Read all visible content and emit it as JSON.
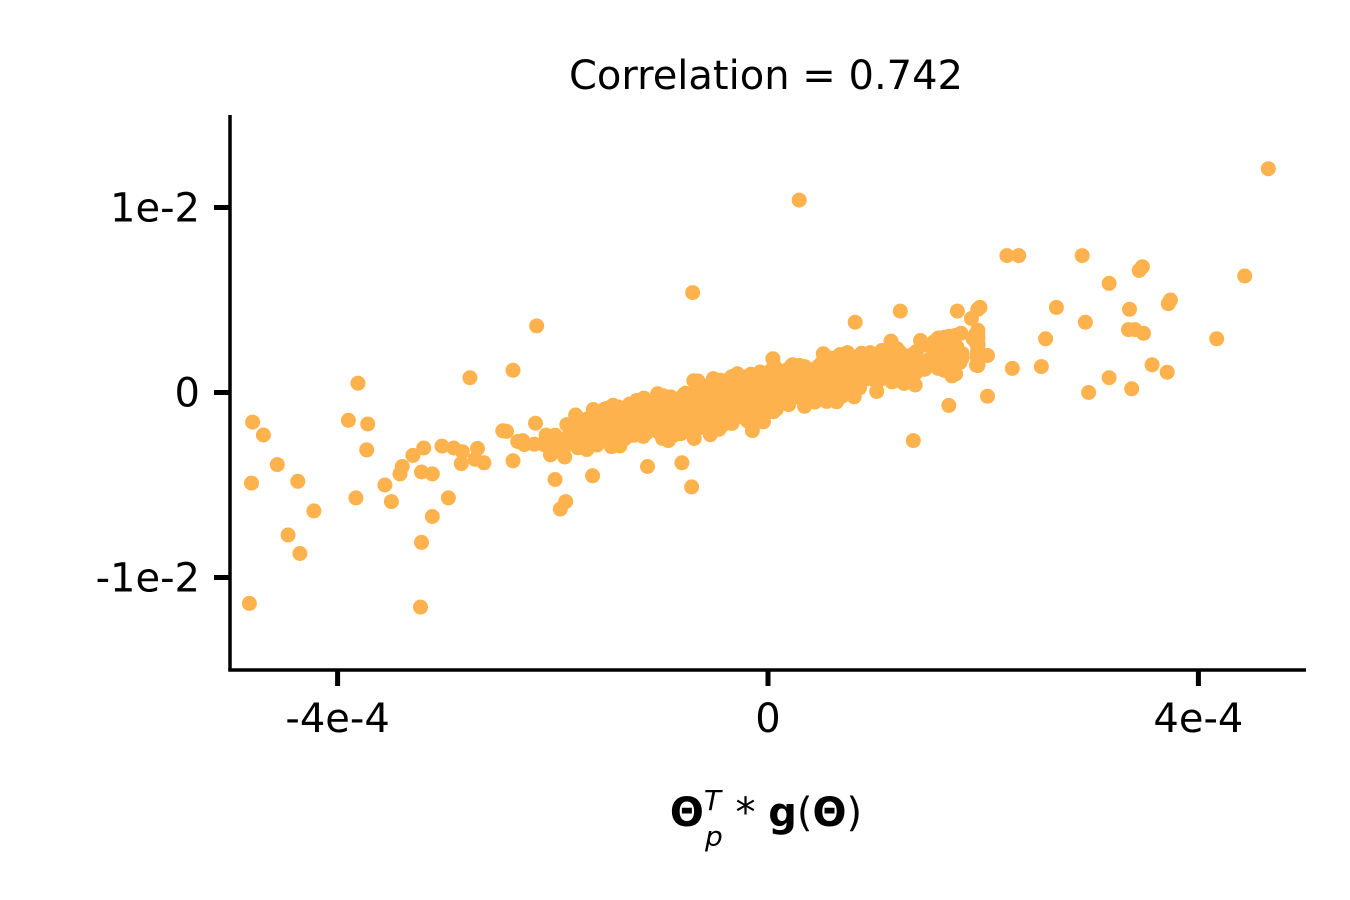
{
  "chart_data": {
    "type": "scatter",
    "title": "Correlation = 0.742",
    "xlabel": {
      "theta": "Θ",
      "sup": "T",
      "sub": "p",
      "op": " * ",
      "g": "g",
      "lparen": "(",
      "theta2": "Θ",
      "rparen": ")"
    },
    "ylabel": "",
    "xlim": [
      -0.0005,
      0.0005
    ],
    "ylim": [
      -0.015,
      0.015
    ],
    "xticks": [
      {
        "value": -0.0004,
        "label": "-4e-4"
      },
      {
        "value": 0,
        "label": "0"
      },
      {
        "value": 0.0004,
        "label": "4e-4"
      }
    ],
    "yticks": [
      {
        "value": 0.01,
        "label": "1e-2"
      },
      {
        "value": 0,
        "label": "0"
      },
      {
        "value": -0.01,
        "label": "-1e-2"
      }
    ],
    "color": "#fdb24d",
    "grid": false,
    "outliers": [
      [
        0.000465,
        0.0121
      ],
      [
        2.9e-05,
        0.0104
      ],
      [
        0.000443,
        0.0063
      ],
      [
        0.000292,
        0.0074
      ],
      [
        0.000233,
        0.0074
      ],
      [
        0.000348,
        0.0068
      ],
      [
        0.000345,
        0.0066
      ],
      [
        0.000317,
        0.0059
      ],
      [
        0.000374,
        0.005
      ],
      [
        0.000372,
        0.0048
      ],
      [
        0.000336,
        0.0045
      ],
      [
        0.000268,
        0.0046
      ],
      [
        0.000295,
        0.0038
      ],
      [
        0.000335,
        0.0034
      ],
      [
        0.000341,
        0.0034
      ],
      [
        0.000349,
        0.0032
      ],
      [
        0.000417,
        0.0029
      ],
      [
        0.000357,
        0.0015
      ],
      [
        0.000371,
        0.0011
      ],
      [
        0.000317,
        0.0008
      ],
      [
        0.000338,
        0.0002
      ],
      [
        0.000298,
        0.0
      ],
      [
        0.000254,
        0.0014
      ],
      [
        0.000258,
        0.0029
      ],
      [
        0.000222,
        0.0074
      ],
      [
        0.000197,
        0.0046
      ],
      [
        0.000195,
        0.0045
      ],
      [
        0.000176,
        0.0044
      ],
      [
        0.000189,
        0.004
      ],
      [
        0.000227,
        0.0013
      ],
      [
        0.000204,
        0.002
      ],
      [
        0.000204,
        -0.0002
      ],
      [
        0.000168,
        -0.0007
      ],
      [
        0.000135,
        -0.0026
      ],
      [
        0.000123,
        0.0044
      ],
      [
        8.1e-05,
        0.0038
      ],
      [
        -7e-05,
        0.0054
      ],
      [
        -7.1e-05,
        -0.0051
      ],
      [
        -8e-05,
        -0.0038
      ],
      [
        -0.000112,
        -0.004
      ],
      [
        -0.000163,
        -0.0045
      ],
      [
        -0.000188,
        -0.0059
      ],
      [
        -0.000193,
        -0.0063
      ],
      [
        -0.000198,
        -0.0047
      ],
      [
        -0.000215,
        0.0036
      ],
      [
        -0.000237,
        0.0012
      ],
      [
        -0.000277,
        0.0008
      ],
      [
        -0.000479,
        -0.0016
      ],
      [
        -0.000469,
        -0.0023
      ],
      [
        -0.000456,
        -0.0039
      ],
      [
        -0.00048,
        -0.0049
      ],
      [
        -0.000446,
        -0.0077
      ],
      [
        -0.000435,
        -0.0087
      ],
      [
        -0.000437,
        -0.0048
      ],
      [
        -0.000422,
        -0.0064
      ],
      [
        -0.000482,
        -0.0114
      ],
      [
        -0.000381,
        0.0005
      ],
      [
        -0.00039,
        -0.0015
      ],
      [
        -0.000372,
        -0.0017
      ],
      [
        -0.000383,
        -0.0057
      ],
      [
        -0.000373,
        -0.0031
      ],
      [
        -0.000356,
        -0.005
      ],
      [
        -0.00035,
        -0.0059
      ],
      [
        -0.000342,
        -0.0044
      ],
      [
        -0.00034,
        -0.004
      ],
      [
        -0.00033,
        -0.0034
      ],
      [
        -0.000322,
        -0.0043
      ],
      [
        -0.00032,
        -0.003
      ],
      [
        -0.000322,
        -0.0081
      ],
      [
        -0.000323,
        -0.0116
      ],
      [
        -0.000312,
        -0.0067
      ],
      [
        -0.000312,
        -0.0044
      ],
      [
        -0.000297,
        -0.0057
      ],
      [
        -0.000303,
        -0.0029
      ],
      [
        -0.000292,
        -0.003
      ],
      [
        -0.000284,
        -0.0032
      ],
      [
        -0.000264,
        -0.0038
      ],
      [
        -0.000243,
        -0.0021
      ],
      [
        -0.000228,
        -0.0026
      ]
    ],
    "cloud": {
      "n": 1150,
      "seed": 7,
      "x_sd": 9.5e-05,
      "x_range": [
        -0.000285,
        0.000195
      ],
      "slope": 12.3,
      "noise_sd": 0.00058
    }
  }
}
